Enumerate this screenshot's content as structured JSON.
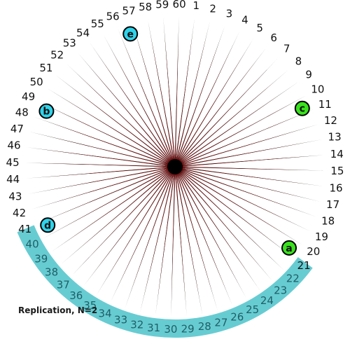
{
  "caption": "Replication, N=2",
  "colors": {
    "spoke_red": "#9c0f0f",
    "spoke_black": "#000000",
    "arc": "#67ccd2",
    "marker_cyan": "#2fd3ea",
    "marker_green": "#39e21d"
  },
  "spokes": {
    "count": 60,
    "labels": [
      "1",
      "2",
      "3",
      "4",
      "5",
      "6",
      "7",
      "8",
      "9",
      "10",
      "11",
      "12",
      "13",
      "14",
      "15",
      "16",
      "17",
      "18",
      "19",
      "20",
      "21",
      "22",
      "23",
      "24",
      "25",
      "26",
      "27",
      "28",
      "29",
      "30",
      "31",
      "32",
      "33",
      "34",
      "35",
      "36",
      "37",
      "38",
      "39",
      "40",
      "41",
      "42",
      "43",
      "44",
      "45",
      "46",
      "47",
      "48",
      "49",
      "50",
      "51",
      "52",
      "53",
      "54",
      "55",
      "56",
      "57",
      "58",
      "59",
      "60"
    ],
    "highlighted_range": [
      "22",
      "40"
    ]
  },
  "markers": [
    {
      "label": "a",
      "spoke": 21,
      "color": "green"
    },
    {
      "label": "b",
      "spoke": 49,
      "color": "cyan"
    },
    {
      "label": "c",
      "spoke": 11,
      "color": "green"
    },
    {
      "label": "d",
      "spoke": 41,
      "color": "cyan"
    },
    {
      "label": "e",
      "spoke": 57,
      "color": "cyan"
    }
  ]
}
